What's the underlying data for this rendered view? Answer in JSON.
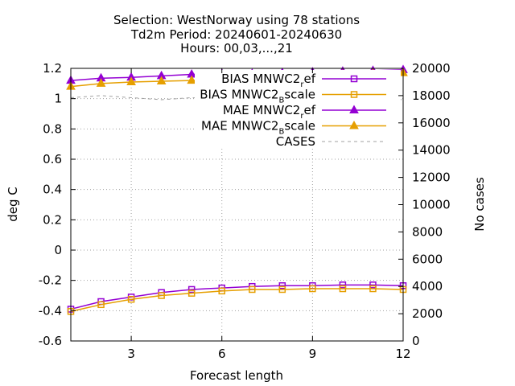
{
  "chart_data": {
    "type": "line",
    "title_lines": [
      "Selection: WestNorway using    78 stations",
      "Td2m   Period: 20240601-20240630",
      "Hours: 00,03,...,21"
    ],
    "xlabel": "Forecast length",
    "ylabel": "deg C",
    "y2label": "No cases",
    "xlim": [
      1,
      12
    ],
    "ylim": [
      -0.6,
      1.2
    ],
    "y2lim": [
      0,
      20000
    ],
    "x_ticks": [
      3,
      6,
      9,
      12
    ],
    "y_ticks": [
      -0.6,
      -0.4,
      -0.2,
      0,
      0.2,
      0.4,
      0.6,
      0.8,
      1,
      1.2
    ],
    "y_tick_labels": [
      "-0.6",
      "-0.4",
      "-0.2",
      "0",
      "0.2",
      "0.4",
      "0.6",
      "0.8",
      "1",
      "1.2"
    ],
    "y2_ticks": [
      0,
      2000,
      4000,
      6000,
      8000,
      10000,
      12000,
      14000,
      16000,
      18000,
      20000
    ],
    "grid": true,
    "legend_position": "top-right",
    "x": [
      1,
      2,
      3,
      4,
      5,
      6,
      7,
      8,
      9,
      10,
      11,
      12
    ],
    "series": [
      {
        "name": "BIAS MNWC2_ref",
        "label_main": "BIAS MNWC2",
        "label_sub": "r",
        "label_tail": "ef",
        "color": "#9400d3",
        "marker": "square",
        "axis": "y",
        "values": [
          -0.39,
          -0.34,
          -0.31,
          -0.28,
          -0.26,
          -0.25,
          -0.24,
          -0.235,
          -0.235,
          -0.23,
          -0.23,
          -0.235
        ]
      },
      {
        "name": "BIAS MNWC2_Bscale",
        "label_main": "BIAS MNWC2",
        "label_sub": "B",
        "label_tail": "scale",
        "color": "#e69f00",
        "marker": "square",
        "axis": "y",
        "values": [
          -0.405,
          -0.36,
          -0.325,
          -0.3,
          -0.285,
          -0.27,
          -0.26,
          -0.26,
          -0.255,
          -0.255,
          -0.255,
          -0.26
        ]
      },
      {
        "name": "MAE MNWC2_ref",
        "label_main": "MAE MNWC2",
        "label_sub": "r",
        "label_tail": "ef",
        "color": "#9400d3",
        "marker": "triangle",
        "axis": "y",
        "values": [
          1.12,
          1.135,
          1.14,
          1.15,
          1.16,
          1.165,
          1.165,
          1.17,
          1.175,
          1.18,
          1.185,
          1.19
        ]
      },
      {
        "name": "MAE MNWC2_Bscale",
        "label_main": "MAE MNWC2",
        "label_sub": "B",
        "label_tail": "scale",
        "color": "#e69f00",
        "marker": "triangle",
        "axis": "y",
        "values": [
          1.08,
          1.1,
          1.11,
          1.115,
          1.12,
          1.13,
          1.135,
          1.14,
          1.15,
          1.16,
          1.165,
          1.17
        ]
      },
      {
        "name": "CASES",
        "label_main": "CASES",
        "label_sub": "",
        "label_tail": "",
        "color": "#a0a0a0",
        "marker": "none",
        "dash": true,
        "axis": "y2",
        "values": [
          17850,
          18000,
          17850,
          17700,
          17850,
          17700,
          17850,
          17700,
          17850,
          17700,
          17850,
          17700
        ]
      }
    ]
  }
}
